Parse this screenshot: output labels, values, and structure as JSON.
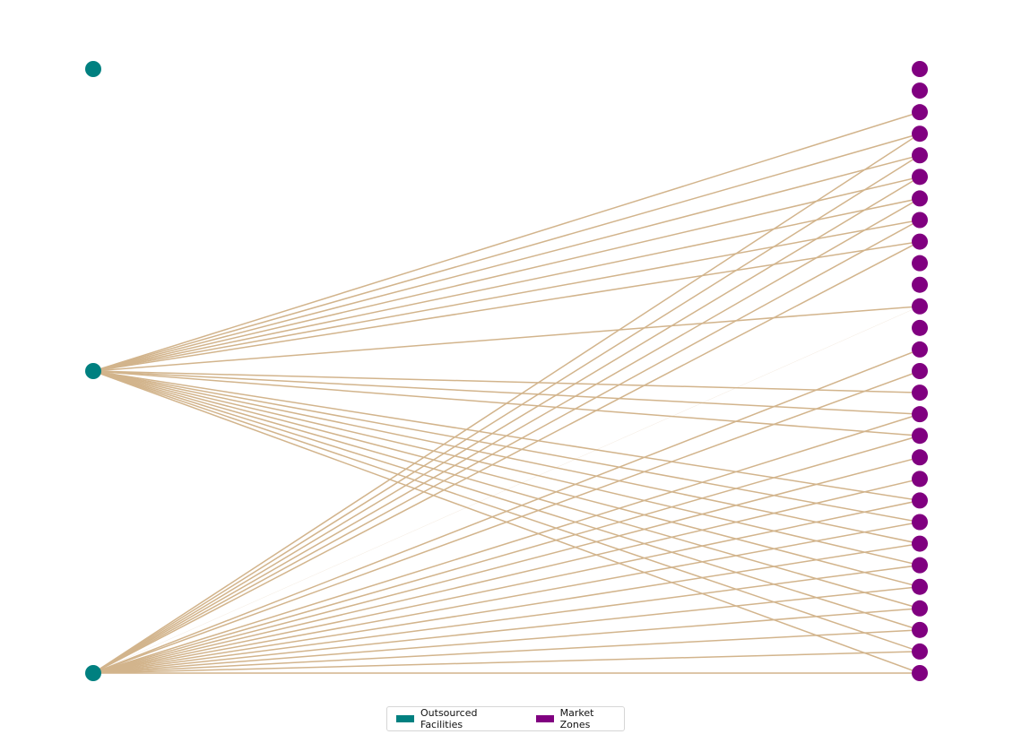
{
  "colors": {
    "facility": "#008080",
    "market": "#800080",
    "edge": "#d2b48c"
  },
  "legend": {
    "facility_label": "Outsourced Facilities",
    "market_label": "Market Zones"
  },
  "graph": {
    "facility_count": 3,
    "market_count": 29,
    "edges": [
      {
        "from": 1,
        "to": 2
      },
      {
        "from": 1,
        "to": 3
      },
      {
        "from": 1,
        "to": 4
      },
      {
        "from": 1,
        "to": 5
      },
      {
        "from": 1,
        "to": 6
      },
      {
        "from": 1,
        "to": 7
      },
      {
        "from": 1,
        "to": 8
      },
      {
        "from": 1,
        "to": 11
      },
      {
        "from": 1,
        "to": 15
      },
      {
        "from": 1,
        "to": 16
      },
      {
        "from": 1,
        "to": 17
      },
      {
        "from": 1,
        "to": 20
      },
      {
        "from": 1,
        "to": 21
      },
      {
        "from": 1,
        "to": 22
      },
      {
        "from": 1,
        "to": 23
      },
      {
        "from": 1,
        "to": 24
      },
      {
        "from": 1,
        "to": 25
      },
      {
        "from": 1,
        "to": 26
      },
      {
        "from": 1,
        "to": 27
      },
      {
        "from": 1,
        "to": 28
      },
      {
        "from": 2,
        "to": 3
      },
      {
        "from": 2,
        "to": 4
      },
      {
        "from": 2,
        "to": 5
      },
      {
        "from": 2,
        "to": 6
      },
      {
        "from": 2,
        "to": 7
      },
      {
        "from": 2,
        "to": 8
      },
      {
        "from": 2,
        "to": 13
      },
      {
        "from": 2,
        "to": 14
      },
      {
        "from": 2,
        "to": 16
      },
      {
        "from": 2,
        "to": 17
      },
      {
        "from": 2,
        "to": 18
      },
      {
        "from": 2,
        "to": 19
      },
      {
        "from": 2,
        "to": 20
      },
      {
        "from": 2,
        "to": 21
      },
      {
        "from": 2,
        "to": 22
      },
      {
        "from": 2,
        "to": 23
      },
      {
        "from": 2,
        "to": 24
      },
      {
        "from": 2,
        "to": 25
      },
      {
        "from": 2,
        "to": 26
      },
      {
        "from": 2,
        "to": 27
      },
      {
        "from": 2,
        "to": 28
      }
    ],
    "faint_edges": [
      {
        "from": 1,
        "to": 8
      },
      {
        "from": 2,
        "to": 11
      }
    ]
  }
}
